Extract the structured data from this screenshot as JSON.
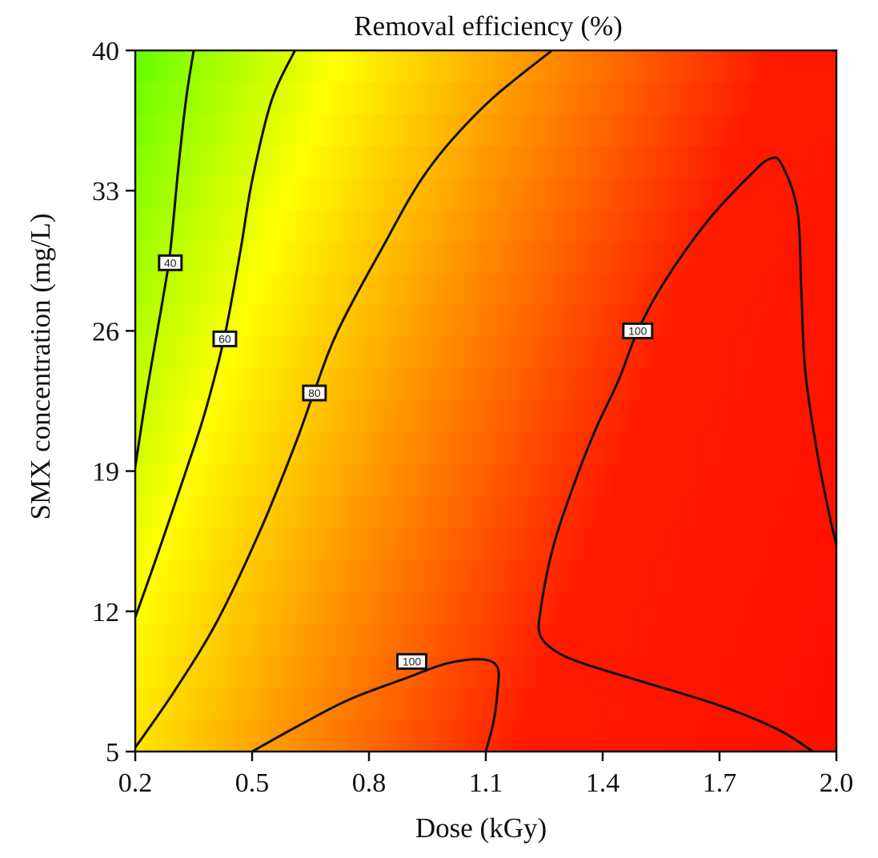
{
  "chart_data": {
    "type": "heatmap",
    "subtype": "contour",
    "title": "Removal efficiency (%)",
    "xlabel": "Dose (kGy)",
    "ylabel": "SMX concentration (mg/L)",
    "xlim": [
      0.2,
      2.0
    ],
    "ylim": [
      5,
      40
    ],
    "x_ticks": [
      "0.2",
      "0.5",
      "0.8",
      "1.1",
      "1.4",
      "1.7",
      "2.0"
    ],
    "y_ticks": [
      "5",
      "12",
      "19",
      "26",
      "33",
      "40"
    ],
    "grid": false,
    "colormap": [
      "#00e5ff",
      "#00ff00",
      "#ffff00",
      "#ff0000"
    ],
    "contours": [
      {
        "label": "40",
        "closed": false,
        "points": [
          [
            0.2,
            19.2
          ],
          [
            0.23,
            23.0
          ],
          [
            0.27,
            27.5
          ],
          [
            0.29,
            30.0
          ],
          [
            0.31,
            34.0
          ],
          [
            0.33,
            37.5
          ],
          [
            0.35,
            40.0
          ]
        ],
        "label_at": [
          0.29,
          29.4
        ]
      },
      {
        "label": "60",
        "closed": false,
        "points": [
          [
            0.2,
            11.7
          ],
          [
            0.26,
            15.0
          ],
          [
            0.33,
            19.0
          ],
          [
            0.38,
            22.0
          ],
          [
            0.43,
            25.8
          ],
          [
            0.47,
            30.0
          ],
          [
            0.5,
            33.5
          ],
          [
            0.55,
            37.5
          ],
          [
            0.61,
            40.0
          ]
        ],
        "label_at": [
          0.43,
          25.6
        ]
      },
      {
        "label": "80",
        "closed": false,
        "points": [
          [
            0.2,
            5.2
          ],
          [
            0.3,
            8.0
          ],
          [
            0.41,
            11.5
          ],
          [
            0.52,
            16.0
          ],
          [
            0.61,
            20.3
          ],
          [
            0.66,
            23.0
          ],
          [
            0.72,
            26.0
          ],
          [
            0.83,
            30.0
          ],
          [
            0.95,
            34.0
          ],
          [
            1.1,
            37.3
          ],
          [
            1.27,
            40.0
          ]
        ],
        "label_at": [
          0.66,
          22.9
        ]
      },
      {
        "label": "100",
        "closed": false,
        "points": [
          [
            0.5,
            5.0
          ],
          [
            0.62,
            6.3
          ],
          [
            0.75,
            7.6
          ],
          [
            0.9,
            8.7
          ],
          [
            1.0,
            9.4
          ],
          [
            1.09,
            9.6
          ],
          [
            1.13,
            9.2
          ],
          [
            1.13,
            8.0
          ],
          [
            1.12,
            6.5
          ],
          [
            1.1,
            5.0
          ]
        ],
        "label_at": [
          0.91,
          9.5
        ]
      },
      {
        "label": "100",
        "closed": false,
        "points": [
          [
            1.94,
            5.0
          ],
          [
            1.85,
            6.1
          ],
          [
            1.7,
            7.3
          ],
          [
            1.5,
            8.5
          ],
          [
            1.35,
            9.4
          ],
          [
            1.28,
            10.0
          ],
          [
            1.24,
            10.8
          ],
          [
            1.24,
            12.0
          ],
          [
            1.27,
            15.0
          ],
          [
            1.32,
            18.0
          ],
          [
            1.38,
            21.0
          ],
          [
            1.44,
            23.5
          ],
          [
            1.49,
            26.0
          ],
          [
            1.56,
            28.5
          ],
          [
            1.67,
            31.5
          ],
          [
            1.78,
            33.8
          ],
          [
            1.83,
            34.6
          ],
          [
            1.86,
            34.3
          ],
          [
            1.9,
            32.0
          ],
          [
            1.91,
            28.0
          ],
          [
            1.92,
            24.0
          ],
          [
            1.95,
            20.0
          ],
          [
            1.98,
            17.0
          ],
          [
            2.0,
            15.3
          ]
        ],
        "label_at": [
          1.49,
          26.0
        ]
      }
    ]
  }
}
